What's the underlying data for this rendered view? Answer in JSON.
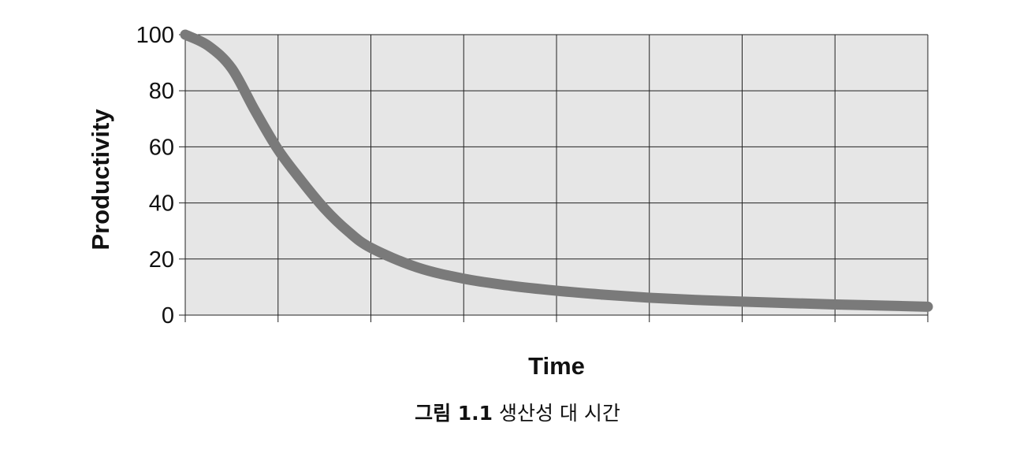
{
  "chart_data": {
    "type": "line",
    "xlabel": "Time",
    "ylabel": "Productivity",
    "ylim": [
      0,
      100
    ],
    "xlim": [
      0,
      8
    ],
    "yticks": [
      0,
      20,
      40,
      60,
      80,
      100
    ],
    "x_gridlines": 8,
    "grid": true,
    "background": "#e6e6e6",
    "line_color": "#7a7a7a",
    "series": [
      {
        "x": [
          0,
          0.25,
          0.5,
          0.75,
          1.0,
          1.25,
          1.5,
          1.75,
          2.0,
          2.5,
          3.0,
          3.5,
          4.0,
          4.5,
          5.0,
          5.5,
          6.0,
          6.5,
          7.0,
          7.5,
          8.0
        ],
        "y": [
          100,
          96,
          88,
          73,
          59,
          48,
          38,
          30,
          24,
          17,
          13,
          10.5,
          8.7,
          7.3,
          6.2,
          5.4,
          4.8,
          4.3,
          3.8,
          3.4,
          3.0
        ]
      }
    ]
  },
  "caption": {
    "prefix": "그림 1.1",
    "text": "생산성 대 시간"
  }
}
